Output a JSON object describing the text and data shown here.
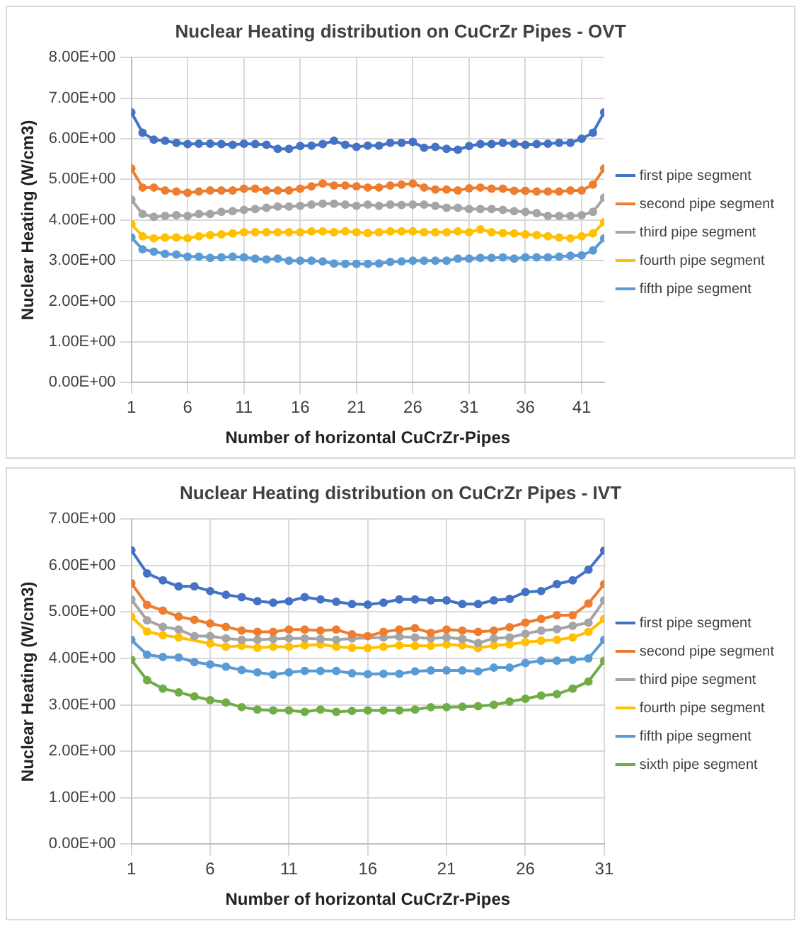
{
  "chart_data": [
    {
      "type": "line",
      "title": "Nuclear Heating distribution on CuCrZr Pipes - OVT",
      "xlabel": "Number of horizontal CuCrZr-Pipes",
      "ylabel": "Nuclear Heating (W/cm3)",
      "x": [
        1,
        2,
        3,
        4,
        5,
        6,
        7,
        8,
        9,
        10,
        11,
        12,
        13,
        14,
        15,
        16,
        17,
        18,
        19,
        20,
        21,
        22,
        23,
        24,
        25,
        26,
        27,
        28,
        29,
        30,
        31,
        32,
        33,
        34,
        35,
        36,
        37,
        38,
        39,
        40,
        41,
        42,
        43
      ],
      "series": [
        {
          "name": "first pipe segment",
          "color": "#4472c4",
          "values": [
            6.65,
            6.15,
            5.98,
            5.95,
            5.9,
            5.87,
            5.88,
            5.88,
            5.87,
            5.85,
            5.88,
            5.87,
            5.85,
            5.75,
            5.75,
            5.82,
            5.83,
            5.87,
            5.95,
            5.85,
            5.8,
            5.83,
            5.83,
            5.9,
            5.9,
            5.92,
            5.78,
            5.8,
            5.75,
            5.73,
            5.82,
            5.87,
            5.87,
            5.9,
            5.88,
            5.85,
            5.87,
            5.88,
            5.9,
            5.9,
            6.0,
            6.15,
            6.65
          ]
        },
        {
          "name": "second pipe segment",
          "color": "#ed7d31",
          "values": [
            5.27,
            4.8,
            4.8,
            4.73,
            4.7,
            4.67,
            4.7,
            4.73,
            4.73,
            4.73,
            4.77,
            4.77,
            4.73,
            4.73,
            4.73,
            4.77,
            4.83,
            4.9,
            4.85,
            4.85,
            4.83,
            4.8,
            4.8,
            4.85,
            4.87,
            4.9,
            4.8,
            4.75,
            4.75,
            4.73,
            4.78,
            4.8,
            4.77,
            4.77,
            4.72,
            4.72,
            4.7,
            4.7,
            4.7,
            4.73,
            4.73,
            4.87,
            5.27
          ]
        },
        {
          "name": "third pipe segment",
          "color": "#a5a5a5",
          "values": [
            4.5,
            4.15,
            4.08,
            4.1,
            4.12,
            4.1,
            4.15,
            4.15,
            4.2,
            4.22,
            4.25,
            4.27,
            4.3,
            4.33,
            4.33,
            4.35,
            4.38,
            4.4,
            4.4,
            4.38,
            4.35,
            4.38,
            4.35,
            4.38,
            4.37,
            4.38,
            4.38,
            4.35,
            4.3,
            4.3,
            4.27,
            4.27,
            4.27,
            4.25,
            4.22,
            4.2,
            4.17,
            4.1,
            4.1,
            4.1,
            4.12,
            4.2,
            4.55
          ]
        },
        {
          "name": "fourth pipe segment",
          "color": "#ffc000",
          "values": [
            3.9,
            3.6,
            3.55,
            3.57,
            3.57,
            3.55,
            3.6,
            3.63,
            3.65,
            3.67,
            3.7,
            3.7,
            3.7,
            3.7,
            3.7,
            3.7,
            3.72,
            3.72,
            3.7,
            3.72,
            3.7,
            3.68,
            3.7,
            3.72,
            3.72,
            3.72,
            3.7,
            3.7,
            3.7,
            3.72,
            3.7,
            3.77,
            3.7,
            3.68,
            3.67,
            3.65,
            3.63,
            3.6,
            3.57,
            3.55,
            3.6,
            3.67,
            3.95
          ]
        },
        {
          "name": "fifth pipe segment",
          "color": "#5b9bd5",
          "values": [
            3.57,
            3.28,
            3.22,
            3.17,
            3.15,
            3.1,
            3.1,
            3.07,
            3.08,
            3.1,
            3.08,
            3.05,
            3.03,
            3.05,
            3.0,
            3.0,
            3.0,
            2.98,
            2.93,
            2.92,
            2.92,
            2.92,
            2.93,
            2.97,
            2.98,
            3.0,
            3.0,
            3.0,
            3.0,
            3.05,
            3.05,
            3.07,
            3.07,
            3.08,
            3.05,
            3.08,
            3.08,
            3.08,
            3.1,
            3.12,
            3.13,
            3.25,
            3.55
          ]
        }
      ],
      "xlim": [
        1,
        43
      ],
      "xticks": [
        1,
        6,
        11,
        16,
        21,
        26,
        31,
        36,
        41
      ],
      "ylim": [
        0,
        8
      ],
      "yticks": [
        {
          "value": 0,
          "label": "0.00E+00"
        },
        {
          "value": 1,
          "label": "1.00E+00"
        },
        {
          "value": 2,
          "label": "2.00E+00"
        },
        {
          "value": 3,
          "label": "3.00E+00"
        },
        {
          "value": 4,
          "label": "4.00E+00"
        },
        {
          "value": 5,
          "label": "5.00E+00"
        },
        {
          "value": 6,
          "label": "6.00E+00"
        },
        {
          "value": 7,
          "label": "7.00E+00"
        },
        {
          "value": 8,
          "label": "8.00E+00"
        }
      ],
      "grid": true,
      "legend": "right",
      "marker": "circle",
      "line_style": "solid"
    },
    {
      "type": "line",
      "title": "Nuclear Heating distribution on CuCrZr Pipes - IVT",
      "xlabel": "Number of horizontal CuCrZr-Pipes",
      "ylabel": "Nuclear Heating (W/cm3)",
      "x": [
        1,
        2,
        3,
        4,
        5,
        6,
        7,
        8,
        9,
        10,
        11,
        12,
        13,
        14,
        15,
        16,
        17,
        18,
        19,
        20,
        21,
        22,
        23,
        24,
        25,
        26,
        27,
        28,
        29,
        30,
        31
      ],
      "series": [
        {
          "name": "first pipe segment",
          "color": "#4472c4",
          "values": [
            6.33,
            5.83,
            5.68,
            5.55,
            5.55,
            5.45,
            5.37,
            5.32,
            5.23,
            5.2,
            5.23,
            5.32,
            5.27,
            5.22,
            5.17,
            5.16,
            5.2,
            5.27,
            5.27,
            5.25,
            5.25,
            5.17,
            5.17,
            5.25,
            5.28,
            5.43,
            5.45,
            5.6,
            5.68,
            5.91,
            6.32
          ]
        },
        {
          "name": "second pipe segment",
          "color": "#ed7d31",
          "values": [
            5.62,
            5.15,
            5.03,
            4.9,
            4.83,
            4.75,
            4.68,
            4.6,
            4.57,
            4.57,
            4.62,
            4.62,
            4.6,
            4.62,
            4.52,
            4.48,
            4.57,
            4.62,
            4.65,
            4.55,
            4.62,
            4.6,
            4.57,
            4.6,
            4.67,
            4.77,
            4.85,
            4.93,
            4.93,
            5.18,
            5.6
          ]
        },
        {
          "name": "third pipe segment",
          "color": "#a5a5a5",
          "values": [
            5.27,
            4.82,
            4.68,
            4.62,
            4.48,
            4.48,
            4.43,
            4.4,
            4.4,
            4.42,
            4.43,
            4.43,
            4.42,
            4.4,
            4.43,
            null,
            4.45,
            4.47,
            4.45,
            4.43,
            4.45,
            4.42,
            4.33,
            4.43,
            4.45,
            4.53,
            4.6,
            4.63,
            4.7,
            4.77,
            5.25
          ]
        },
        {
          "name": "fourth pipe segment",
          "color": "#ffc000",
          "values": [
            4.9,
            4.58,
            4.5,
            4.45,
            null,
            4.32,
            4.25,
            4.27,
            4.23,
            4.25,
            4.25,
            4.28,
            4.3,
            4.25,
            4.23,
            4.22,
            4.25,
            4.28,
            4.27,
            4.27,
            4.3,
            4.28,
            4.22,
            4.28,
            4.3,
            4.35,
            4.38,
            4.4,
            4.45,
            4.57,
            4.85
          ]
        },
        {
          "name": "fifth pipe segment",
          "color": "#5b9bd5",
          "values": [
            4.4,
            4.08,
            4.03,
            4.02,
            3.92,
            3.87,
            3.82,
            3.75,
            3.7,
            3.65,
            3.7,
            3.73,
            3.73,
            3.73,
            3.68,
            3.66,
            3.67,
            3.67,
            3.72,
            3.74,
            3.74,
            3.74,
            3.72,
            3.8,
            3.8,
            3.9,
            3.95,
            3.95,
            3.97,
            4.0,
            4.4
          ]
        },
        {
          "name": "sixth pipe segment",
          "color": "#70ad47",
          "values": [
            3.97,
            3.53,
            3.35,
            3.27,
            3.18,
            3.1,
            3.05,
            2.95,
            2.9,
            2.88,
            2.88,
            2.85,
            2.9,
            2.85,
            2.87,
            2.88,
            2.88,
            2.88,
            2.9,
            2.95,
            2.95,
            2.96,
            2.97,
            3.0,
            3.07,
            3.13,
            3.2,
            3.23,
            3.35,
            3.5,
            3.95
          ]
        }
      ],
      "xlim": [
        1,
        31
      ],
      "xticks": [
        1,
        6,
        11,
        16,
        21,
        26,
        31
      ],
      "ylim": [
        0,
        7
      ],
      "yticks": [
        {
          "value": 0,
          "label": "0.00E+00"
        },
        {
          "value": 1,
          "label": "1.00E+00"
        },
        {
          "value": 2,
          "label": "2.00E+00"
        },
        {
          "value": 3,
          "label": "3.00E+00"
        },
        {
          "value": 4,
          "label": "4.00E+00"
        },
        {
          "value": 5,
          "label": "5.00E+00"
        },
        {
          "value": 6,
          "label": "6.00E+00"
        },
        {
          "value": 7,
          "label": "7.00E+00"
        }
      ],
      "grid": true,
      "legend": "right",
      "marker": "circle",
      "line_style": "solid"
    }
  ]
}
